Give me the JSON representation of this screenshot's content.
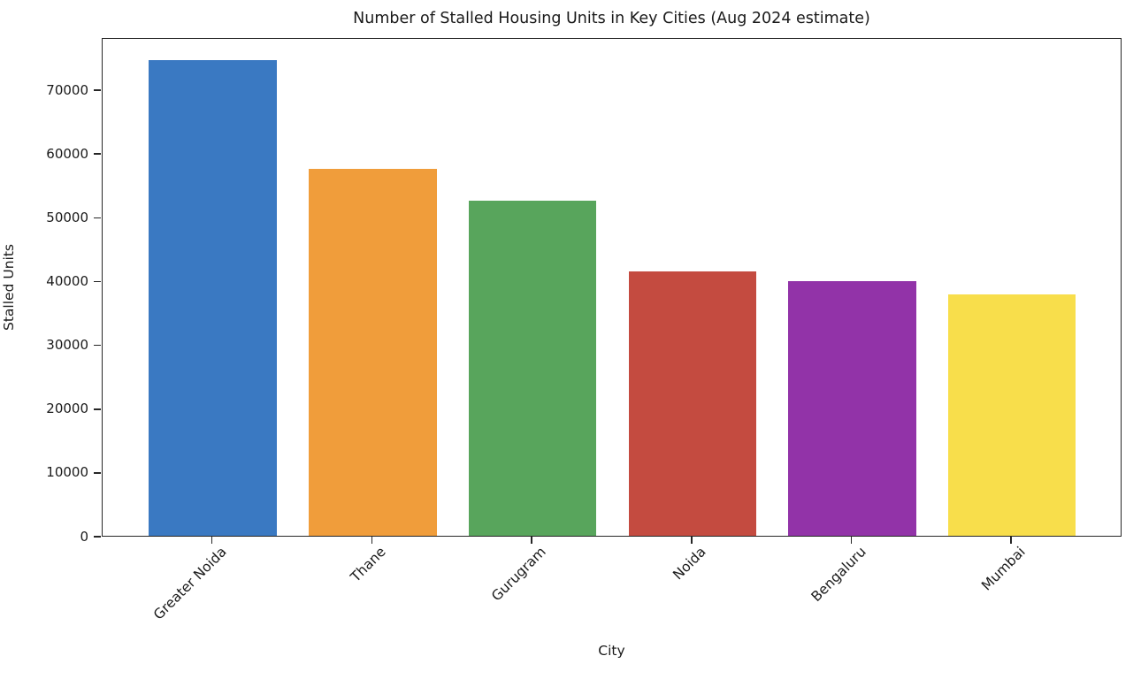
{
  "chart_data": {
    "type": "bar",
    "title": "Number of Stalled Housing Units in Key Cities (Aug 2024 estimate)",
    "xlabel": "City",
    "ylabel": "Stalled Units",
    "categories": [
      "Greater Noida",
      "Thane",
      "Gurugram",
      "Noida",
      "Bengaluru",
      "Mumbai"
    ],
    "values": [
      74600,
      57500,
      52500,
      41400,
      39900,
      37900
    ],
    "bar_colors": [
      "#3a79c2",
      "#f09d3b",
      "#58a55c",
      "#c44b40",
      "#9233a8",
      "#f8de4b"
    ],
    "yticks": [
      0,
      10000,
      20000,
      30000,
      40000,
      50000,
      60000,
      70000
    ],
    "ylim": [
      0,
      78200
    ],
    "xtick_rotation_deg": 45,
    "grid": false,
    "legend": "none",
    "spine_color": "#262626",
    "text_color": "#1a1a1a",
    "background_color": "#ffffff"
  }
}
